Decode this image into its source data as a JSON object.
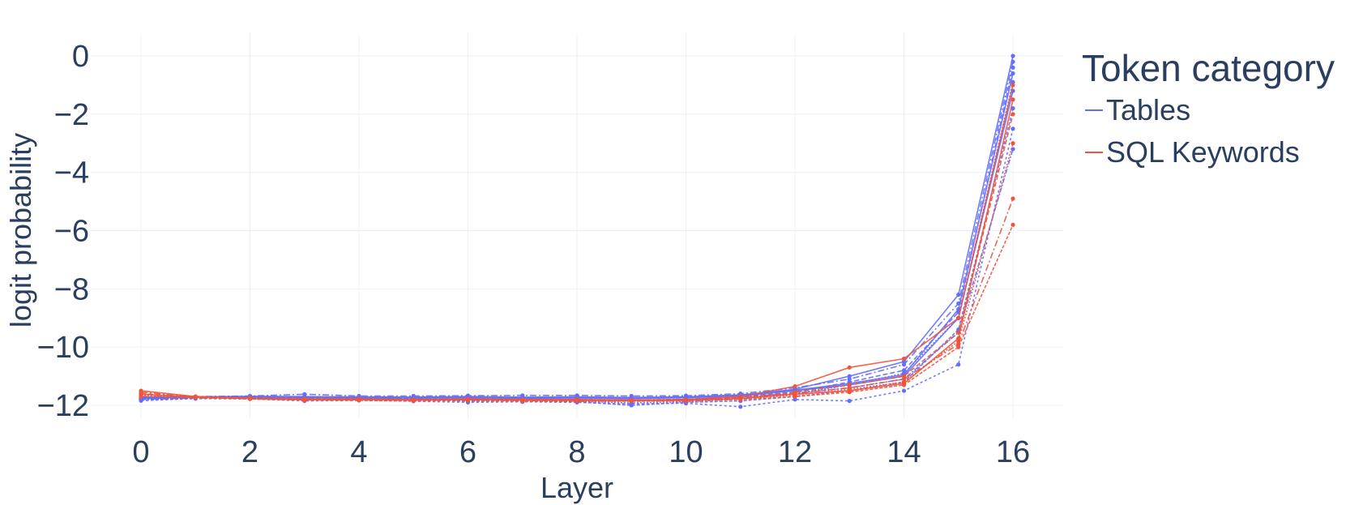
{
  "chart_data": {
    "type": "line",
    "title": "",
    "xlabel": "Layer",
    "ylabel": "logit probability",
    "xlim": [
      0,
      16
    ],
    "ylim": [
      -12.8,
      0.7
    ],
    "x": [
      0,
      1,
      2,
      3,
      4,
      5,
      6,
      7,
      8,
      9,
      10,
      11,
      12,
      13,
      14,
      15,
      16
    ],
    "xticks": [
      "0",
      "2",
      "4",
      "6",
      "8",
      "10",
      "12",
      "14",
      "16"
    ],
    "xtick_values": [
      0,
      2,
      4,
      6,
      8,
      10,
      12,
      14,
      16
    ],
    "yticks": [
      "0",
      "−2",
      "−4",
      "−6",
      "−8",
      "−10",
      "−12"
    ],
    "ytick_values": [
      0,
      -2,
      -4,
      -6,
      -8,
      -10,
      -12
    ],
    "grid": true,
    "legend_title": "Token category",
    "legend_position": "right",
    "groups": [
      {
        "name": "Tables",
        "color": "#636efa",
        "series": [
          {
            "values": [
              -11.75,
              -11.72,
              -11.7,
              -11.72,
              -11.73,
              -11.73,
              -11.72,
              -11.74,
              -11.73,
              -11.74,
              -11.72,
              -11.65,
              -11.45,
              -11.0,
              -10.5,
              -8.2,
              0.0
            ]
          },
          {
            "values": [
              -11.78,
              -11.73,
              -11.72,
              -11.75,
              -11.76,
              -11.77,
              -11.8,
              -11.78,
              -11.82,
              -11.85,
              -11.8,
              -11.7,
              -11.55,
              -11.2,
              -10.8,
              -8.8,
              -0.4
            ]
          },
          {
            "values": [
              -11.8,
              -11.75,
              -11.74,
              -11.78,
              -11.78,
              -11.8,
              -11.83,
              -11.82,
              -11.86,
              -11.92,
              -11.88,
              -11.78,
              -11.6,
              -11.3,
              -10.9,
              -9.0,
              -0.9
            ]
          },
          {
            "values": [
              -11.7,
              -11.7,
              -11.68,
              -11.62,
              -11.68,
              -11.68,
              -11.67,
              -11.66,
              -11.66,
              -11.68,
              -11.67,
              -11.6,
              -11.4,
              -11.1,
              -10.6,
              -8.5,
              -0.2
            ]
          },
          {
            "values": [
              -11.82,
              -11.76,
              -11.76,
              -11.8,
              -11.8,
              -11.82,
              -11.86,
              -11.85,
              -11.88,
              -12.0,
              -11.9,
              -11.85,
              -11.7,
              -11.5,
              -11.2,
              -9.4,
              -1.8
            ]
          },
          {
            "values": [
              -11.76,
              -11.73,
              -11.71,
              -11.73,
              -11.74,
              -11.75,
              -11.74,
              -11.76,
              -11.75,
              -11.77,
              -11.74,
              -11.68,
              -11.5,
              -11.3,
              -11.0,
              -9.0,
              -1.2
            ]
          },
          {
            "values": [
              -11.84,
              -11.77,
              -11.78,
              -11.85,
              -11.83,
              -11.86,
              -11.9,
              -11.88,
              -11.9,
              -11.95,
              -11.93,
              -12.05,
              -11.8,
              -11.85,
              -11.5,
              -10.6,
              -2.5
            ]
          },
          {
            "values": [
              -11.72,
              -11.71,
              -11.69,
              -11.7,
              -11.71,
              -11.72,
              -11.7,
              -11.72,
              -11.71,
              -11.73,
              -11.71,
              -11.64,
              -11.48,
              -11.25,
              -10.95,
              -8.7,
              -0.6
            ]
          },
          {
            "values": [
              -11.79,
              -11.74,
              -11.73,
              -11.76,
              -11.77,
              -11.78,
              -11.79,
              -11.79,
              -11.8,
              -11.82,
              -11.79,
              -11.72,
              -11.58,
              -11.4,
              -11.1,
              -9.5,
              -3.2
            ]
          }
        ]
      },
      {
        "name": "SQL Keywords",
        "color": "#ef553b",
        "series": [
          {
            "values": [
              -11.5,
              -11.7,
              -11.75,
              -11.78,
              -11.78,
              -11.8,
              -11.78,
              -11.8,
              -11.8,
              -11.82,
              -11.8,
              -11.7,
              -11.35,
              -10.7,
              -10.4,
              -9.0,
              -1.0
            ]
          },
          {
            "values": [
              -11.6,
              -11.72,
              -11.76,
              -11.8,
              -11.8,
              -11.82,
              -11.8,
              -11.82,
              -11.82,
              -11.83,
              -11.82,
              -11.75,
              -11.55,
              -11.3,
              -11.0,
              -9.5,
              -2.0
            ]
          },
          {
            "values": [
              -11.65,
              -11.73,
              -11.78,
              -11.82,
              -11.82,
              -11.83,
              -11.82,
              -11.84,
              -11.84,
              -11.85,
              -11.84,
              -11.78,
              -11.65,
              -11.45,
              -11.2,
              -9.8,
              -3.0
            ]
          },
          {
            "values": [
              -11.55,
              -11.71,
              -11.76,
              -11.79,
              -11.79,
              -11.8,
              -11.79,
              -11.81,
              -11.81,
              -11.82,
              -11.81,
              -11.74,
              -11.6,
              -11.4,
              -11.1,
              -9.9,
              -4.9
            ]
          },
          {
            "values": [
              -11.7,
              -11.74,
              -11.78,
              -11.82,
              -11.83,
              -11.85,
              -11.83,
              -11.86,
              -11.86,
              -11.86,
              -11.85,
              -11.8,
              -11.7,
              -11.55,
              -11.3,
              -10.0,
              -5.8
            ]
          },
          {
            "values": [
              -11.62,
              -11.72,
              -11.77,
              -11.81,
              -11.81,
              -11.82,
              -11.81,
              -11.83,
              -11.83,
              -11.84,
              -11.83,
              -11.77,
              -11.62,
              -11.5,
              -11.25,
              -9.7,
              -1.5
            ]
          }
        ]
      }
    ]
  }
}
